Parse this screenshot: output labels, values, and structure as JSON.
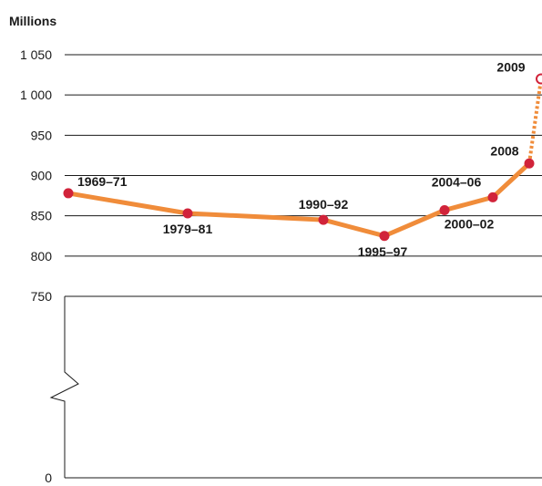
{
  "chart_data": {
    "type": "line",
    "title": "",
    "ylabel": "Millions",
    "xlabel": "",
    "ylim": [
      0,
      1050
    ],
    "axis_break": [
      0,
      750
    ],
    "yticks": [
      "1 050",
      "1 000",
      "950",
      "900",
      "850",
      "800",
      "750",
      "0"
    ],
    "ytick_values": [
      1050,
      1000,
      950,
      900,
      850,
      800,
      750,
      0
    ],
    "grid": true,
    "colors": {
      "line": "#f08c3a",
      "marker": "#d1233a",
      "text": "#1a1a1a"
    },
    "series": [
      {
        "points": [
          {
            "label": "1969–71",
            "y": 878,
            "style": "solid"
          },
          {
            "label": "1979–81",
            "y": 853,
            "style": "solid"
          },
          {
            "label": "1990–92",
            "y": 845,
            "style": "solid"
          },
          {
            "label": "1995–97",
            "y": 825,
            "style": "solid"
          },
          {
            "label": "2000–02",
            "y": 857,
            "style": "solid"
          },
          {
            "label": "2004–06",
            "y": 873,
            "style": "solid"
          },
          {
            "label": "2008",
            "y": 915,
            "style": "solid"
          },
          {
            "label": "2009",
            "y": 1020,
            "style": "projected"
          }
        ]
      }
    ]
  }
}
